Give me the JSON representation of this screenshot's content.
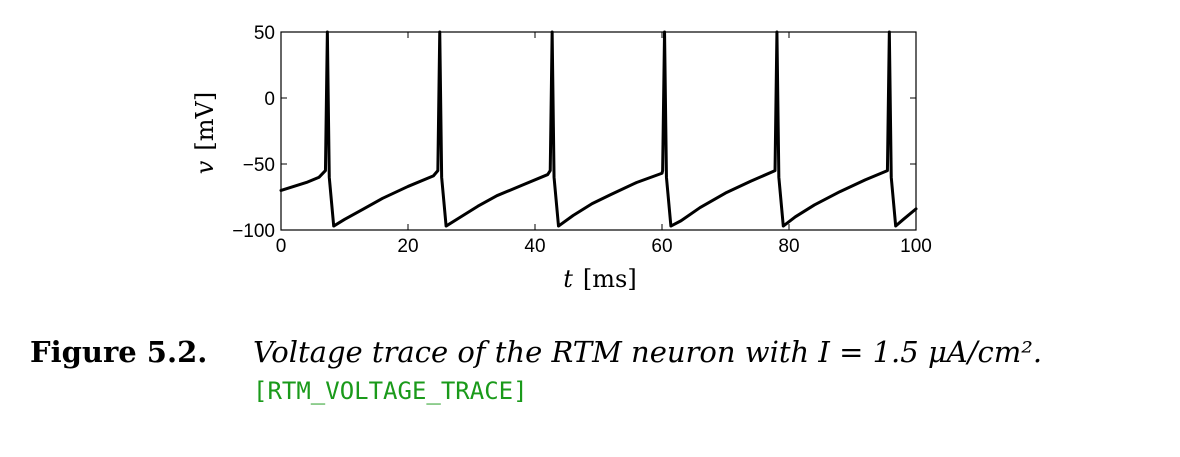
{
  "chart_data": {
    "type": "line",
    "xlabel_var": "t",
    "xlabel_unit": "[ms]",
    "ylabel_var": "v",
    "ylabel_unit": "[mV]",
    "xlim": [
      0,
      100
    ],
    "ylim": [
      -100,
      50
    ],
    "xticks": [
      0,
      20,
      40,
      60,
      80,
      100
    ],
    "yticks": [
      50,
      0,
      -50,
      -100
    ],
    "xtick_labels": [
      "0",
      "20",
      "40",
      "60",
      "80",
      "100"
    ],
    "ytick_labels": [
      "50",
      "0",
      "−50",
      "−100"
    ],
    "grid": false,
    "line_color": "#000000",
    "spike_times": [
      7.3,
      25.0,
      42.7,
      60.4,
      78.1,
      95.8
    ],
    "spike_peak": 50,
    "trough": -97,
    "initial_v": -70,
    "pre_spike_v": -57,
    "series": [
      {
        "x": [
          0,
          2,
          4,
          6,
          7.0,
          7.3,
          7.6,
          8.3,
          10,
          13,
          16,
          20,
          24,
          24.7,
          25.0,
          25.3,
          26.0,
          28,
          31,
          34,
          38,
          42,
          42.4,
          42.7,
          43.0,
          43.7,
          46,
          49,
          52,
          56,
          60,
          60.1,
          60.4,
          60.7,
          61.4,
          63,
          66,
          70,
          74,
          77.8,
          78.1,
          78.4,
          79.1,
          81,
          84,
          88,
          92,
          95.5,
          95.8,
          96.1,
          96.8,
          98,
          100
        ],
        "y": [
          -70,
          -67,
          -64,
          -60,
          -55,
          50,
          -60,
          -97,
          -92,
          -84,
          -76,
          -67,
          -59,
          -55,
          50,
          -60,
          -97,
          -91,
          -82,
          -74,
          -66,
          -58,
          -55,
          50,
          -60,
          -97,
          -89,
          -80,
          -73,
          -64,
          -57,
          -55,
          50,
          -60,
          -97,
          -93,
          -83,
          -72,
          -63,
          -55,
          50,
          -60,
          -97,
          -90,
          -81,
          -71,
          -62,
          -55,
          50,
          -60,
          -97,
          -92,
          -84
        ]
      }
    ]
  },
  "caption": {
    "label": "Figure 5.2.",
    "text": "Voltage trace of the RTM neuron with I = 1.5 μA/cm².",
    "tag": "[RTM_VOLTAGE_TRACE]"
  }
}
